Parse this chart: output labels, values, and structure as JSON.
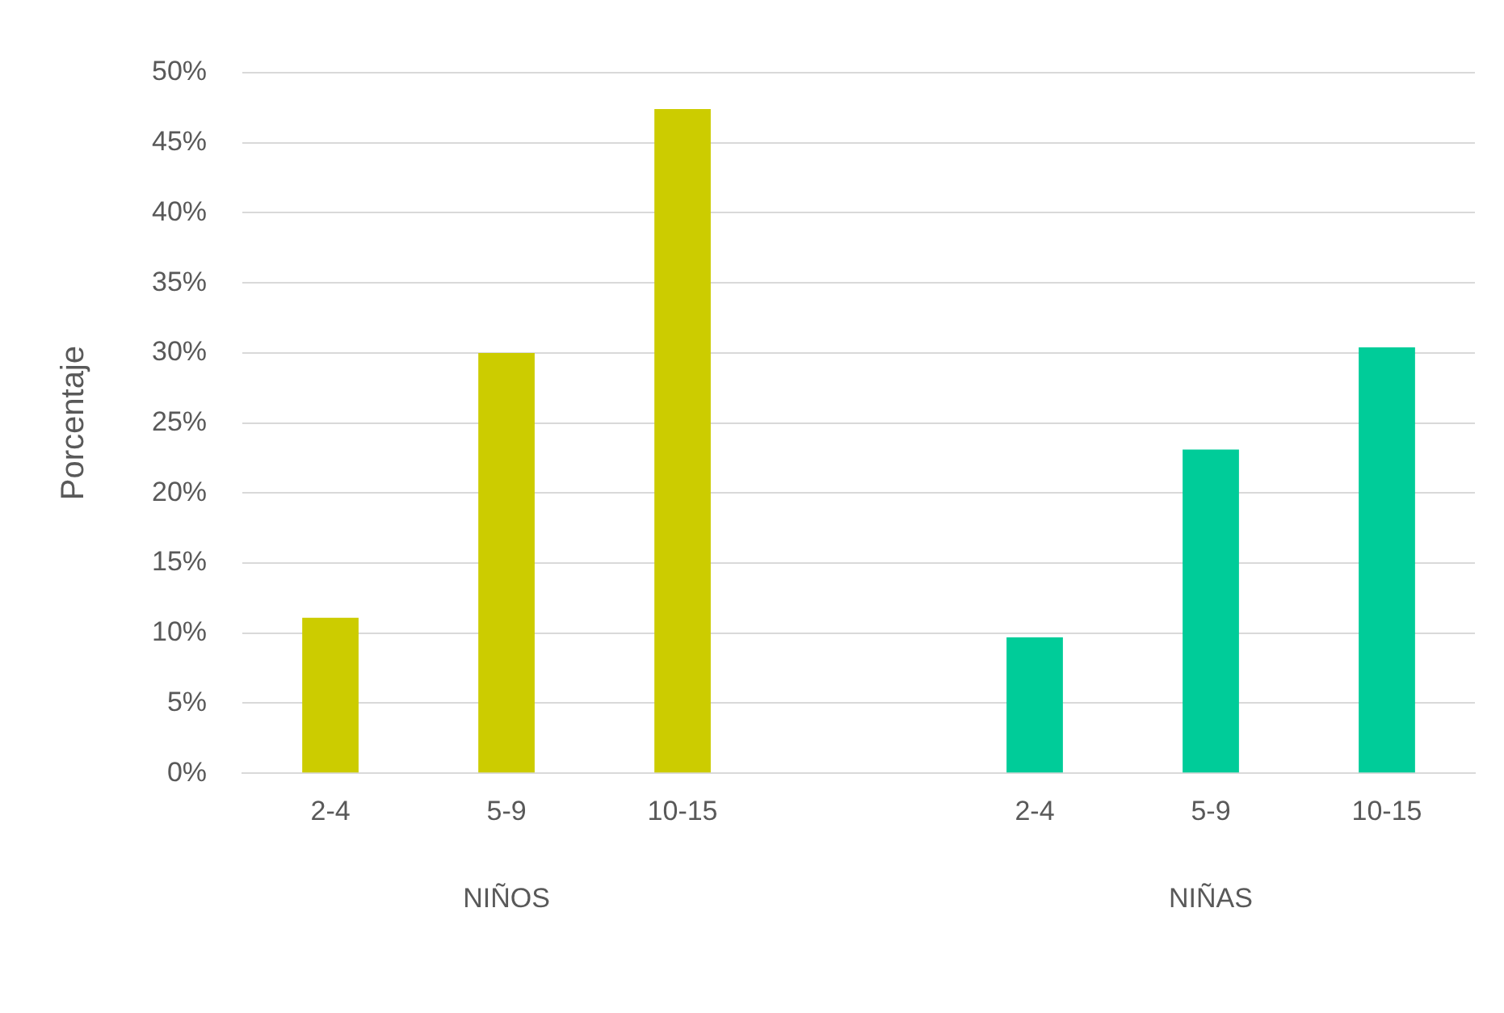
{
  "chart_data": {
    "type": "bar",
    "ylabel": "Porcentaje",
    "categories": [
      "2-4",
      "5-9",
      "10-15",
      null,
      "2-4",
      "5-9",
      "10-15"
    ],
    "series": [
      {
        "color": "#cccc00",
        "values": [
          11.1,
          30,
          47.4,
          null,
          null,
          null,
          null
        ]
      },
      {
        "color": "#00cc99",
        "values": [
          null,
          null,
          null,
          null,
          9.7,
          23.1,
          30.4
        ]
      }
    ],
    "annotations": [
      "NIÑOS",
      "NIÑAS"
    ],
    "ylim": [
      0,
      50
    ],
    "yticks": [
      {
        "value": 0,
        "label": "0%"
      },
      {
        "value": 5,
        "label": "5%"
      },
      {
        "value": 10,
        "label": "10%"
      },
      {
        "value": 15,
        "label": "15%"
      },
      {
        "value": 20,
        "label": "20%"
      },
      {
        "value": 25,
        "label": "25%"
      },
      {
        "value": 30,
        "label": "30%"
      },
      {
        "value": 35,
        "label": "35%"
      },
      {
        "value": 40,
        "label": "40%"
      },
      {
        "value": 45,
        "label": "45%"
      },
      {
        "value": 50,
        "label": "50%"
      }
    ],
    "grid": "y",
    "legend": false
  }
}
